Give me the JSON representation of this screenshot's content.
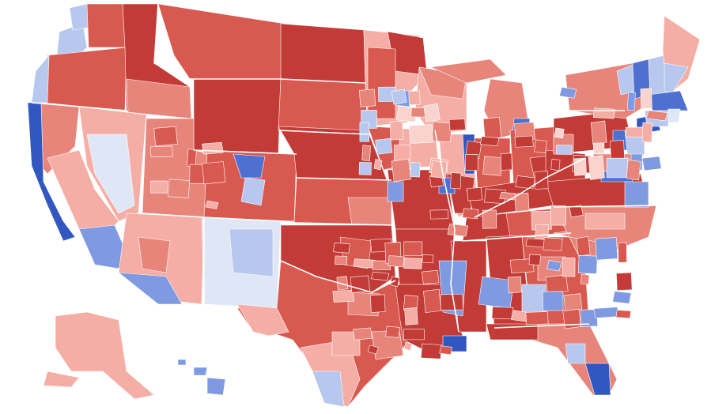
{
  "map": {
    "palette": {
      "strong_red": "#c23b36",
      "red": "#d8594f",
      "medium_red": "#e8857b",
      "light_red": "#f4aea6",
      "pale_red": "#f9d3ce",
      "pale_blue": "#dfe6f6",
      "light_blue": "#b7c7ee",
      "medium_blue": "#7f9ae0",
      "blue": "#4f6fd1",
      "strong_blue": "#3357c0"
    }
  }
}
